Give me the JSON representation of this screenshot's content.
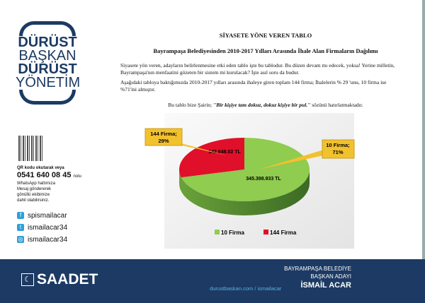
{
  "logo": {
    "line1": "DÜRÜST",
    "line2": "BAŞKAN",
    "line3": "DÜRÜST",
    "line4": "YÖNETİM"
  },
  "sidebar": {
    "qr_text": "QR kodu okutarak veya",
    "phone": "0541 640 08 45",
    "phone_suffix": "nolu",
    "whatsapp_text": [
      "WhatsApp hattımıza",
      "Mesaj göndererek",
      "gönüllü ekibimize",
      "dahil olabilirsiniz."
    ],
    "social": [
      {
        "icon": "facebook-icon",
        "handle": "spismailacar"
      },
      {
        "icon": "twitter-icon",
        "handle": "ismailacar34"
      },
      {
        "icon": "instagram-icon",
        "handle": "ismailacar34"
      }
    ]
  },
  "document": {
    "title": "SİYASETE YÖNE VEREN TABLO",
    "subtitle": "Bayrampaşa Belediyesinden 2010-2017 Yılları Arasında İhale Alan Firmaların Dağılımı",
    "para1": "Siyasete yön veren, adayların belirlenmesine etki eden tablo işte bu tablodur. Bu düzen devam mı edecek, yoksa! Yerine milletin, Bayrampaşa'nın menfaatini gözeten bir sistem mi kurulacak? İşte asıl soru da budur.",
    "para2": "Aşağıdaki tabloya baktığımızda 2010-2017 yılları arasında ihaleye giren toplam 144 firma; İhalelerin % 29 'unu, 10 firma ise %71'ini almıştır.",
    "quote_pre": "Bu tablo bize Şairin; ",
    "quote": "''Bir kişiye tam dokuz, dokuz kişiye bir pul.''",
    "quote_post": " sözünü hatırlatmaktadır."
  },
  "chart_data": {
    "type": "pie",
    "categories": [
      "10 Firma",
      "144 Firma"
    ],
    "values": [
      71,
      29
    ],
    "amounts": [
      "345.398.933 TL",
      "142.648.02 TL"
    ],
    "callouts": [
      "10 Firma; 71%",
      "144 Firma; 29%"
    ],
    "colors": [
      "#8fcc4f",
      "#e0102a"
    ],
    "legend": "bottom"
  },
  "footer": {
    "brand": "SAADET",
    "website": "durustbaskan.com / ismailacar",
    "role1": "BAYRAMPAŞA BELEDİYE",
    "role2": "BAŞKAN ADAYI",
    "name": "İSMAİL ACAR"
  }
}
